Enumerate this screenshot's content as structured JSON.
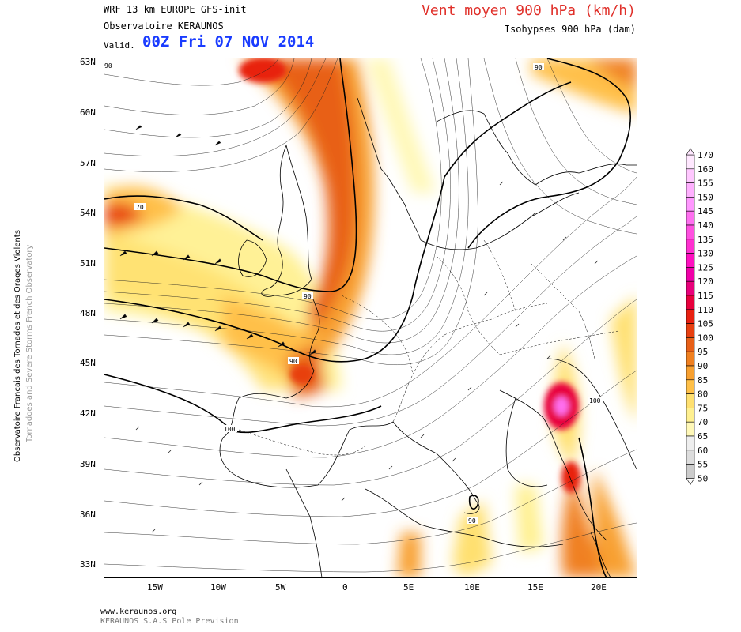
{
  "header": {
    "model_line": "WRF 13 km EUROPE   GFS-init",
    "observatory": "Observatoire KERAUNOS",
    "valid_label": "Valid.",
    "valid_time": "00Z Fri 07 NOV 2014",
    "title": "Vent moyen 900 hPa (km/h)",
    "subtitle": "Isohypses 900 hPa (dam)"
  },
  "side_text": {
    "line1": "Observatoire Francais des Tornades et des Orages Violents",
    "line2": "Tornadoes and Severe Storms French Observatory"
  },
  "footer": {
    "url": "www.keraunos.org",
    "company": "KERAUNOS S.A.S Pole Prevision"
  },
  "axes": {
    "lat_labels": [
      "63N",
      "60N",
      "57N",
      "54N",
      "51N",
      "48N",
      "45N",
      "42N",
      "39N",
      "36N",
      "33N"
    ],
    "lon_labels": [
      "15W",
      "10W",
      "5W",
      "0",
      "5E",
      "10E",
      "15E",
      "20E"
    ]
  },
  "contour_labels": [
    "70",
    "90",
    "90",
    "90",
    "100",
    "100",
    "90",
    "90"
  ],
  "legend": {
    "values": [
      "170",
      "160",
      "155",
      "150",
      "145",
      "140",
      "135",
      "130",
      "125",
      "120",
      "115",
      "110",
      "105",
      "100",
      "95",
      "90",
      "85",
      "80",
      "75",
      "70",
      "65",
      "60",
      "55",
      "50"
    ],
    "colors": [
      "#ffe8ff",
      "#ffc8ff",
      "#ffb0ff",
      "#ff98ff",
      "#ff70f0",
      "#ff50e0",
      "#ff30d0",
      "#ff10c0",
      "#f000a8",
      "#e8007a",
      "#e8003c",
      "#e82010",
      "#e84010",
      "#e86018",
      "#f08020",
      "#f8a030",
      "#ffc048",
      "#ffe070",
      "#fff090",
      "#fff8b8",
      "#eeeeee",
      "#dddddd",
      "#cccccc",
      "#ffffff"
    ]
  }
}
